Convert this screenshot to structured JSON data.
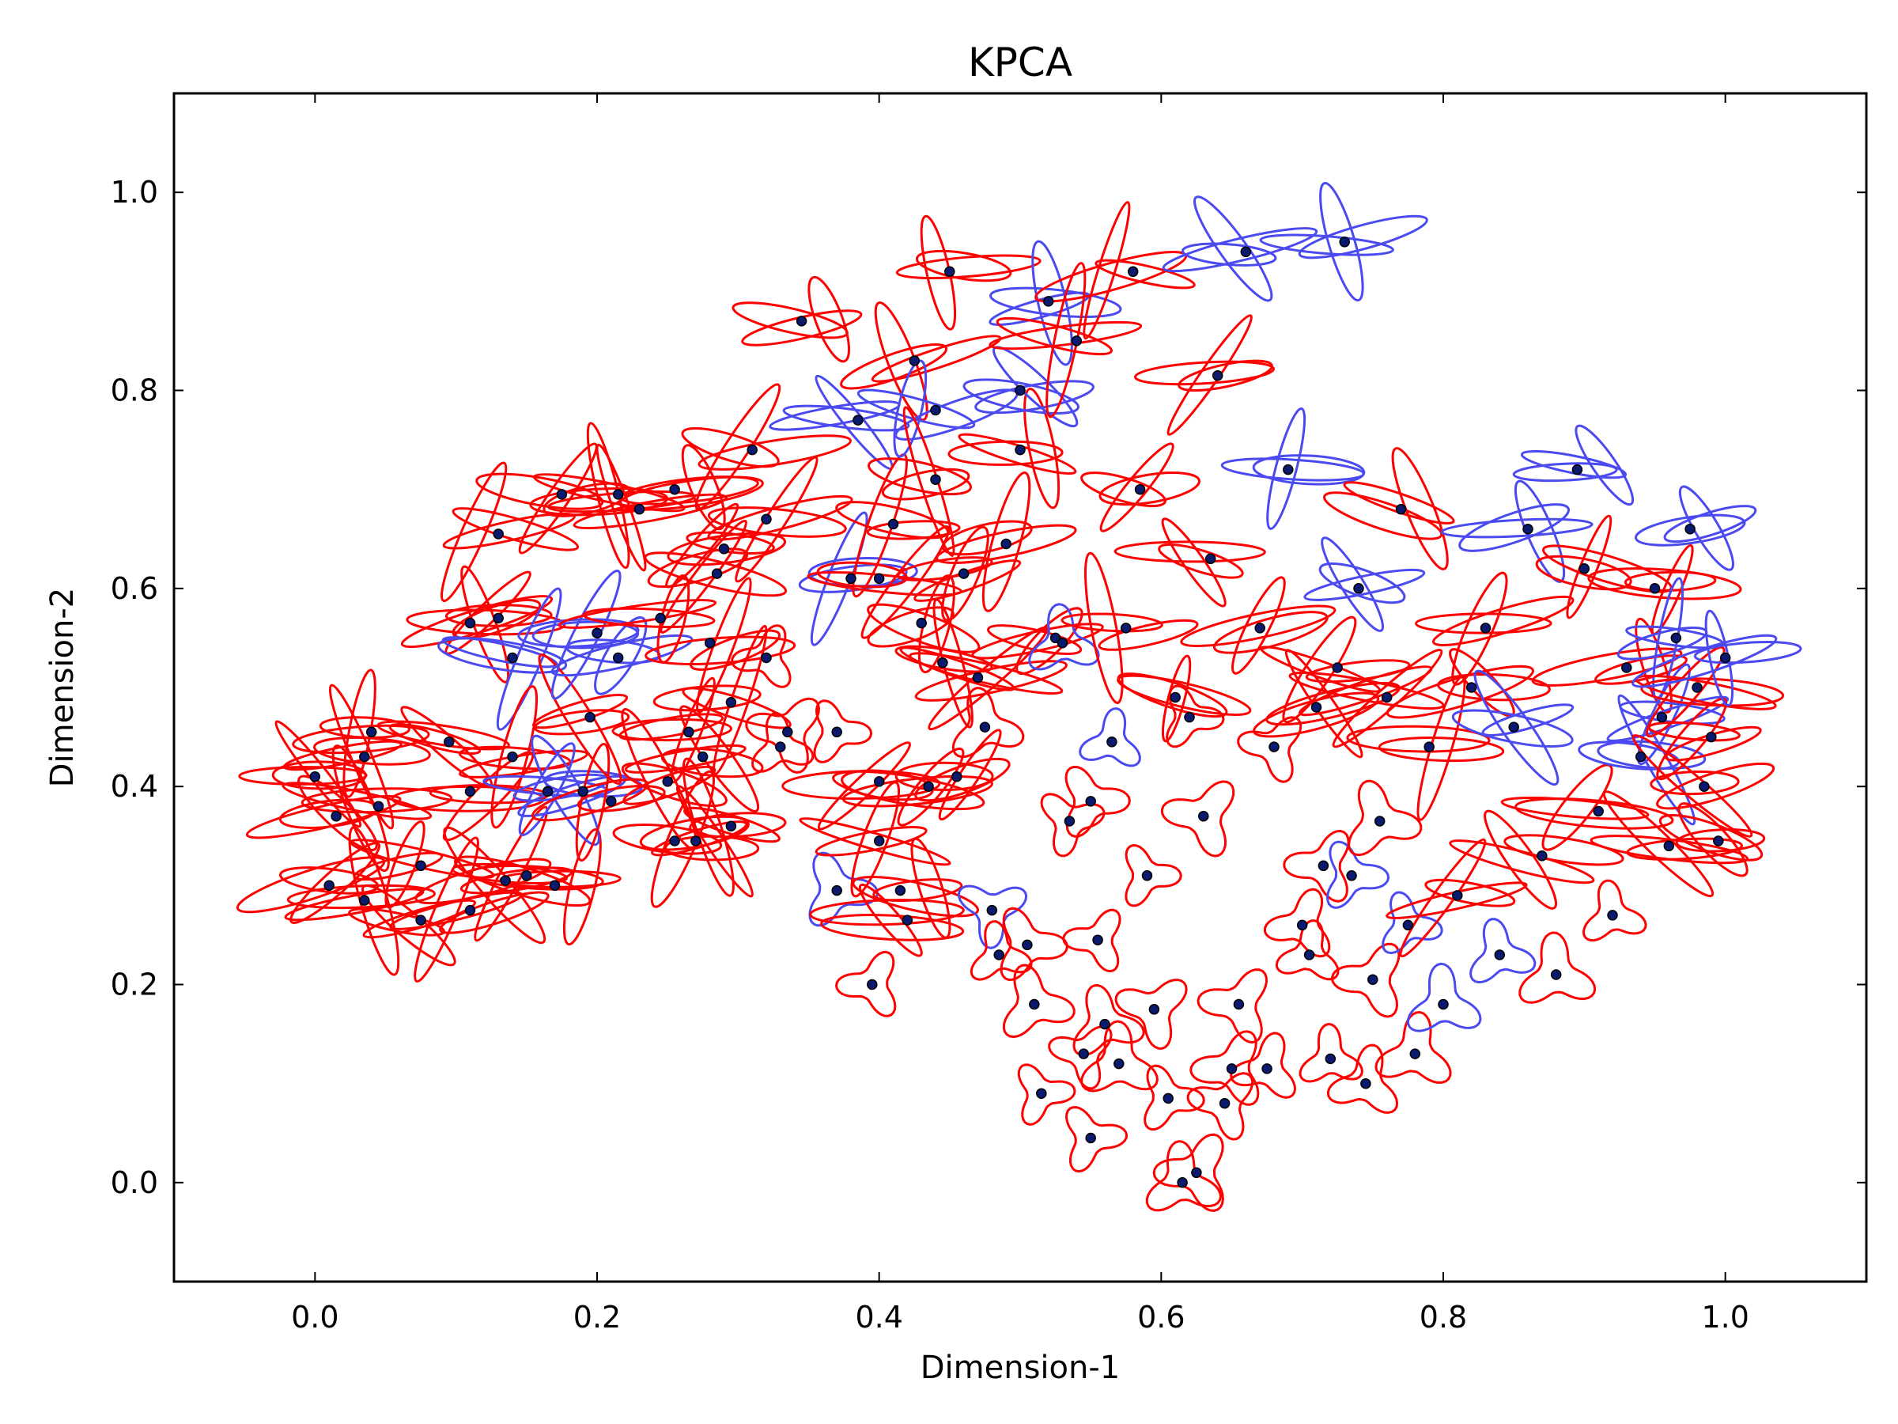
{
  "chart_data": {
    "type": "scatter",
    "title": "KPCA",
    "xlabel": "Dimension-1",
    "ylabel": "Dimension-2",
    "xlim": [
      -0.1,
      1.1
    ],
    "ylim": [
      -0.1,
      1.1
    ],
    "xticks": [
      "0.0",
      "0.2",
      "0.4",
      "0.6",
      "0.8",
      "1.0"
    ],
    "yticks": [
      "0.0",
      "0.2",
      "0.4",
      "0.6",
      "0.8",
      "1.0"
    ],
    "xtick_values": [
      0.0,
      0.2,
      0.4,
      0.6,
      0.8,
      1.0
    ],
    "ytick_values": [
      0.0,
      0.2,
      0.4,
      0.6,
      0.8,
      1.0
    ],
    "grid": false,
    "colors": {
      "point_fill": "#0a1a6e",
      "red_glyph": "#ff0000",
      "blue_glyph": "#4a4af0"
    },
    "points": [
      {
        "x": 0.0,
        "y": 0.41,
        "c": "r",
        "s": "h"
      },
      {
        "x": 0.01,
        "y": 0.3,
        "c": "r",
        "s": "h"
      },
      {
        "x": 0.015,
        "y": 0.37,
        "c": "r",
        "s": "h"
      },
      {
        "x": 0.035,
        "y": 0.43,
        "c": "r",
        "s": "h"
      },
      {
        "x": 0.035,
        "y": 0.285,
        "c": "r",
        "s": "h"
      },
      {
        "x": 0.04,
        "y": 0.455,
        "c": "r",
        "s": "h"
      },
      {
        "x": 0.045,
        "y": 0.38,
        "c": "r",
        "s": "h"
      },
      {
        "x": 0.075,
        "y": 0.32,
        "c": "r",
        "s": "h"
      },
      {
        "x": 0.075,
        "y": 0.265,
        "c": "r",
        "s": "h"
      },
      {
        "x": 0.095,
        "y": 0.445,
        "c": "r",
        "s": "h"
      },
      {
        "x": 0.11,
        "y": 0.395,
        "c": "r",
        "s": "h"
      },
      {
        "x": 0.11,
        "y": 0.565,
        "c": "r",
        "s": "h"
      },
      {
        "x": 0.11,
        "y": 0.275,
        "c": "r",
        "s": "h"
      },
      {
        "x": 0.13,
        "y": 0.655,
        "c": "r",
        "s": "h"
      },
      {
        "x": 0.13,
        "y": 0.57,
        "c": "r",
        "s": "h"
      },
      {
        "x": 0.135,
        "y": 0.305,
        "c": "r",
        "s": "h"
      },
      {
        "x": 0.14,
        "y": 0.53,
        "c": "b",
        "s": "h"
      },
      {
        "x": 0.14,
        "y": 0.43,
        "c": "r",
        "s": "h"
      },
      {
        "x": 0.15,
        "y": 0.31,
        "c": "r",
        "s": "h"
      },
      {
        "x": 0.165,
        "y": 0.395,
        "c": "b",
        "s": "h"
      },
      {
        "x": 0.17,
        "y": 0.3,
        "c": "r",
        "s": "h"
      },
      {
        "x": 0.175,
        "y": 0.695,
        "c": "r",
        "s": "h"
      },
      {
        "x": 0.19,
        "y": 0.395,
        "c": "b",
        "s": "h"
      },
      {
        "x": 0.195,
        "y": 0.47,
        "c": "r",
        "s": "h"
      },
      {
        "x": 0.2,
        "y": 0.555,
        "c": "b",
        "s": "h"
      },
      {
        "x": 0.21,
        "y": 0.385,
        "c": "r",
        "s": "h"
      },
      {
        "x": 0.215,
        "y": 0.695,
        "c": "r",
        "s": "h"
      },
      {
        "x": 0.215,
        "y": 0.53,
        "c": "b",
        "s": "h"
      },
      {
        "x": 0.23,
        "y": 0.68,
        "c": "r",
        "s": "h"
      },
      {
        "x": 0.245,
        "y": 0.57,
        "c": "r",
        "s": "h"
      },
      {
        "x": 0.25,
        "y": 0.405,
        "c": "r",
        "s": "h"
      },
      {
        "x": 0.255,
        "y": 0.345,
        "c": "r",
        "s": "h"
      },
      {
        "x": 0.255,
        "y": 0.7,
        "c": "r",
        "s": "h"
      },
      {
        "x": 0.265,
        "y": 0.455,
        "c": "r",
        "s": "h"
      },
      {
        "x": 0.27,
        "y": 0.345,
        "c": "r",
        "s": "h"
      },
      {
        "x": 0.275,
        "y": 0.43,
        "c": "r",
        "s": "h"
      },
      {
        "x": 0.28,
        "y": 0.545,
        "c": "r",
        "s": "h"
      },
      {
        "x": 0.285,
        "y": 0.615,
        "c": "r",
        "s": "h"
      },
      {
        "x": 0.29,
        "y": 0.64,
        "c": "r",
        "s": "h"
      },
      {
        "x": 0.295,
        "y": 0.485,
        "c": "r",
        "s": "h"
      },
      {
        "x": 0.295,
        "y": 0.36,
        "c": "r",
        "s": "h"
      },
      {
        "x": 0.31,
        "y": 0.74,
        "c": "r",
        "s": "h"
      },
      {
        "x": 0.32,
        "y": 0.53,
        "c": "r",
        "s": "t"
      },
      {
        "x": 0.32,
        "y": 0.67,
        "c": "r",
        "s": "h"
      },
      {
        "x": 0.33,
        "y": 0.44,
        "c": "r",
        "s": "t"
      },
      {
        "x": 0.335,
        "y": 0.455,
        "c": "r",
        "s": "t"
      },
      {
        "x": 0.345,
        "y": 0.87,
        "c": "r",
        "s": "h"
      },
      {
        "x": 0.37,
        "y": 0.455,
        "c": "r",
        "s": "t"
      },
      {
        "x": 0.37,
        "y": 0.295,
        "c": "b",
        "s": "t"
      },
      {
        "x": 0.38,
        "y": 0.61,
        "c": "b",
        "s": "h"
      },
      {
        "x": 0.385,
        "y": 0.77,
        "c": "b",
        "s": "h"
      },
      {
        "x": 0.395,
        "y": 0.2,
        "c": "r",
        "s": "t"
      },
      {
        "x": 0.4,
        "y": 0.405,
        "c": "r",
        "s": "h"
      },
      {
        "x": 0.4,
        "y": 0.345,
        "c": "r",
        "s": "h"
      },
      {
        "x": 0.4,
        "y": 0.61,
        "c": "r",
        "s": "h"
      },
      {
        "x": 0.41,
        "y": 0.665,
        "c": "r",
        "s": "h"
      },
      {
        "x": 0.415,
        "y": 0.295,
        "c": "r",
        "s": "h"
      },
      {
        "x": 0.42,
        "y": 0.265,
        "c": "r",
        "s": "h"
      },
      {
        "x": 0.425,
        "y": 0.83,
        "c": "r",
        "s": "h"
      },
      {
        "x": 0.43,
        "y": 0.565,
        "c": "r",
        "s": "h"
      },
      {
        "x": 0.435,
        "y": 0.4,
        "c": "r",
        "s": "h"
      },
      {
        "x": 0.44,
        "y": 0.78,
        "c": "b",
        "s": "h"
      },
      {
        "x": 0.44,
        "y": 0.71,
        "c": "r",
        "s": "h"
      },
      {
        "x": 0.445,
        "y": 0.525,
        "c": "r",
        "s": "h"
      },
      {
        "x": 0.45,
        "y": 0.92,
        "c": "r",
        "s": "h"
      },
      {
        "x": 0.455,
        "y": 0.41,
        "c": "r",
        "s": "h"
      },
      {
        "x": 0.46,
        "y": 0.615,
        "c": "r",
        "s": "h"
      },
      {
        "x": 0.47,
        "y": 0.51,
        "c": "r",
        "s": "h"
      },
      {
        "x": 0.475,
        "y": 0.46,
        "c": "r",
        "s": "t"
      },
      {
        "x": 0.48,
        "y": 0.275,
        "c": "b",
        "s": "t"
      },
      {
        "x": 0.485,
        "y": 0.23,
        "c": "r",
        "s": "t"
      },
      {
        "x": 0.49,
        "y": 0.645,
        "c": "r",
        "s": "h"
      },
      {
        "x": 0.5,
        "y": 0.74,
        "c": "r",
        "s": "h"
      },
      {
        "x": 0.5,
        "y": 0.8,
        "c": "b",
        "s": "h"
      },
      {
        "x": 0.505,
        "y": 0.24,
        "c": "r",
        "s": "t"
      },
      {
        "x": 0.51,
        "y": 0.18,
        "c": "r",
        "s": "t"
      },
      {
        "x": 0.515,
        "y": 0.09,
        "c": "r",
        "s": "t"
      },
      {
        "x": 0.52,
        "y": 0.89,
        "c": "b",
        "s": "h"
      },
      {
        "x": 0.525,
        "y": 0.55,
        "c": "r",
        "s": "h"
      },
      {
        "x": 0.53,
        "y": 0.545,
        "c": "b",
        "s": "t"
      },
      {
        "x": 0.535,
        "y": 0.365,
        "c": "r",
        "s": "t"
      },
      {
        "x": 0.54,
        "y": 0.85,
        "c": "r",
        "s": "h"
      },
      {
        "x": 0.545,
        "y": 0.13,
        "c": "r",
        "s": "t"
      },
      {
        "x": 0.55,
        "y": 0.045,
        "c": "r",
        "s": "t"
      },
      {
        "x": 0.55,
        "y": 0.385,
        "c": "r",
        "s": "t"
      },
      {
        "x": 0.555,
        "y": 0.245,
        "c": "r",
        "s": "t"
      },
      {
        "x": 0.56,
        "y": 0.16,
        "c": "r",
        "s": "t"
      },
      {
        "x": 0.565,
        "y": 0.445,
        "c": "b",
        "s": "t"
      },
      {
        "x": 0.57,
        "y": 0.12,
        "c": "r",
        "s": "t"
      },
      {
        "x": 0.575,
        "y": 0.56,
        "c": "r",
        "s": "h"
      },
      {
        "x": 0.58,
        "y": 0.92,
        "c": "r",
        "s": "h"
      },
      {
        "x": 0.585,
        "y": 0.7,
        "c": "r",
        "s": "h"
      },
      {
        "x": 0.59,
        "y": 0.31,
        "c": "r",
        "s": "t"
      },
      {
        "x": 0.595,
        "y": 0.175,
        "c": "r",
        "s": "t"
      },
      {
        "x": 0.605,
        "y": 0.085,
        "c": "r",
        "s": "t"
      },
      {
        "x": 0.61,
        "y": 0.49,
        "c": "r",
        "s": "h"
      },
      {
        "x": 0.615,
        "y": 0.0,
        "c": "r",
        "s": "t"
      },
      {
        "x": 0.62,
        "y": 0.47,
        "c": "r",
        "s": "t"
      },
      {
        "x": 0.625,
        "y": 0.01,
        "c": "r",
        "s": "t"
      },
      {
        "x": 0.63,
        "y": 0.37,
        "c": "r",
        "s": "t"
      },
      {
        "x": 0.635,
        "y": 0.63,
        "c": "r",
        "s": "h"
      },
      {
        "x": 0.64,
        "y": 0.815,
        "c": "r",
        "s": "h"
      },
      {
        "x": 0.645,
        "y": 0.08,
        "c": "r",
        "s": "t"
      },
      {
        "x": 0.65,
        "y": 0.115,
        "c": "r",
        "s": "t"
      },
      {
        "x": 0.655,
        "y": 0.18,
        "c": "r",
        "s": "t"
      },
      {
        "x": 0.66,
        "y": 0.94,
        "c": "b",
        "s": "h"
      },
      {
        "x": 0.67,
        "y": 0.56,
        "c": "r",
        "s": "h"
      },
      {
        "x": 0.675,
        "y": 0.115,
        "c": "r",
        "s": "t"
      },
      {
        "x": 0.68,
        "y": 0.44,
        "c": "r",
        "s": "t"
      },
      {
        "x": 0.69,
        "y": 0.72,
        "c": "b",
        "s": "h"
      },
      {
        "x": 0.7,
        "y": 0.26,
        "c": "r",
        "s": "t"
      },
      {
        "x": 0.705,
        "y": 0.23,
        "c": "r",
        "s": "t"
      },
      {
        "x": 0.71,
        "y": 0.48,
        "c": "r",
        "s": "h"
      },
      {
        "x": 0.715,
        "y": 0.32,
        "c": "r",
        "s": "t"
      },
      {
        "x": 0.72,
        "y": 0.125,
        "c": "r",
        "s": "t"
      },
      {
        "x": 0.725,
        "y": 0.52,
        "c": "r",
        "s": "h"
      },
      {
        "x": 0.73,
        "y": 0.95,
        "c": "b",
        "s": "h"
      },
      {
        "x": 0.735,
        "y": 0.31,
        "c": "b",
        "s": "t"
      },
      {
        "x": 0.74,
        "y": 0.6,
        "c": "b",
        "s": "h"
      },
      {
        "x": 0.745,
        "y": 0.1,
        "c": "r",
        "s": "t"
      },
      {
        "x": 0.75,
        "y": 0.205,
        "c": "r",
        "s": "t"
      },
      {
        "x": 0.755,
        "y": 0.365,
        "c": "r",
        "s": "t"
      },
      {
        "x": 0.76,
        "y": 0.49,
        "c": "r",
        "s": "h"
      },
      {
        "x": 0.77,
        "y": 0.68,
        "c": "r",
        "s": "h"
      },
      {
        "x": 0.775,
        "y": 0.26,
        "c": "b",
        "s": "t"
      },
      {
        "x": 0.78,
        "y": 0.13,
        "c": "r",
        "s": "t"
      },
      {
        "x": 0.79,
        "y": 0.44,
        "c": "r",
        "s": "h"
      },
      {
        "x": 0.8,
        "y": 0.18,
        "c": "b",
        "s": "t"
      },
      {
        "x": 0.81,
        "y": 0.29,
        "c": "r",
        "s": "h"
      },
      {
        "x": 0.82,
        "y": 0.5,
        "c": "r",
        "s": "h"
      },
      {
        "x": 0.83,
        "y": 0.56,
        "c": "r",
        "s": "h"
      },
      {
        "x": 0.84,
        "y": 0.23,
        "c": "b",
        "s": "t"
      },
      {
        "x": 0.85,
        "y": 0.46,
        "c": "b",
        "s": "h"
      },
      {
        "x": 0.86,
        "y": 0.66,
        "c": "b",
        "s": "h"
      },
      {
        "x": 0.87,
        "y": 0.33,
        "c": "r",
        "s": "h"
      },
      {
        "x": 0.88,
        "y": 0.21,
        "c": "r",
        "s": "t"
      },
      {
        "x": 0.895,
        "y": 0.72,
        "c": "b",
        "s": "h"
      },
      {
        "x": 0.9,
        "y": 0.62,
        "c": "r",
        "s": "h"
      },
      {
        "x": 0.91,
        "y": 0.375,
        "c": "r",
        "s": "h"
      },
      {
        "x": 0.92,
        "y": 0.27,
        "c": "r",
        "s": "t"
      },
      {
        "x": 0.93,
        "y": 0.52,
        "c": "r",
        "s": "h"
      },
      {
        "x": 0.94,
        "y": 0.43,
        "c": "b",
        "s": "h"
      },
      {
        "x": 0.95,
        "y": 0.6,
        "c": "r",
        "s": "h"
      },
      {
        "x": 0.955,
        "y": 0.47,
        "c": "b",
        "s": "h"
      },
      {
        "x": 0.96,
        "y": 0.34,
        "c": "r",
        "s": "h"
      },
      {
        "x": 0.965,
        "y": 0.55,
        "c": "b",
        "s": "h"
      },
      {
        "x": 0.975,
        "y": 0.66,
        "c": "b",
        "s": "h"
      },
      {
        "x": 0.98,
        "y": 0.5,
        "c": "r",
        "s": "h"
      },
      {
        "x": 0.985,
        "y": 0.4,
        "c": "r",
        "s": "h"
      },
      {
        "x": 0.99,
        "y": 0.45,
        "c": "r",
        "s": "h"
      },
      {
        "x": 0.995,
        "y": 0.345,
        "c": "r",
        "s": "h"
      },
      {
        "x": 1.0,
        "y": 0.53,
        "c": "b",
        "s": "h"
      }
    ]
  }
}
